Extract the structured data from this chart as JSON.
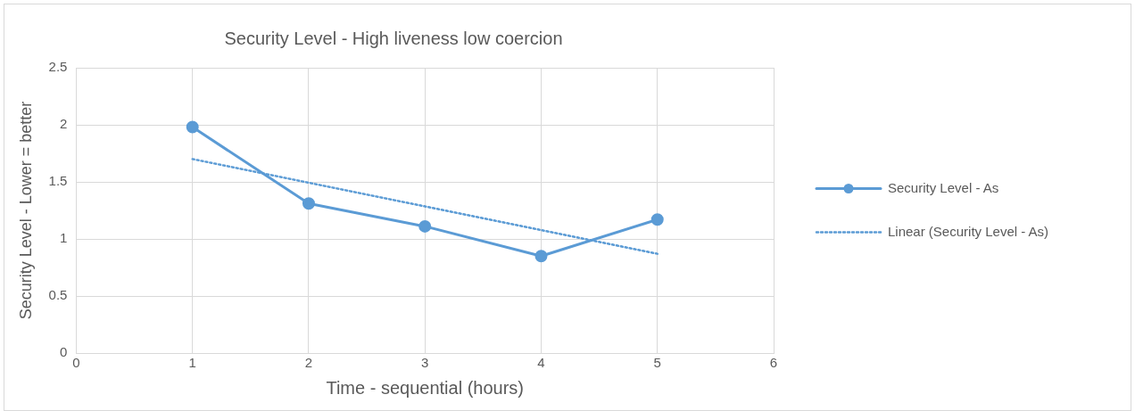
{
  "chart_data": {
    "type": "line",
    "title": "Security Level - High liveness low coercion",
    "xlabel": "Time - sequential (hours)",
    "ylabel": "Security Level - Lower = better",
    "series": [
      {
        "name": "Security Level - As",
        "color": "#5b9bd5",
        "x": [
          1,
          2,
          3,
          4,
          5
        ],
        "values": [
          1.98,
          1.31,
          1.11,
          0.85,
          1.17
        ],
        "marker": "circle",
        "line_style": "solid"
      },
      {
        "name": "Linear (Security Level - As)",
        "color": "#5b9bd5",
        "x": [
          1,
          5
        ],
        "values": [
          1.7,
          0.87
        ],
        "marker": "none",
        "line_style": "dotted"
      }
    ],
    "xlim": [
      0,
      6
    ],
    "xticks": [
      0,
      1,
      2,
      3,
      4,
      5,
      6
    ],
    "ylim": [
      0,
      2.5
    ],
    "yticks": [
      0,
      0.5,
      1,
      1.5,
      2,
      2.5
    ],
    "grid": true,
    "legend": "right"
  }
}
